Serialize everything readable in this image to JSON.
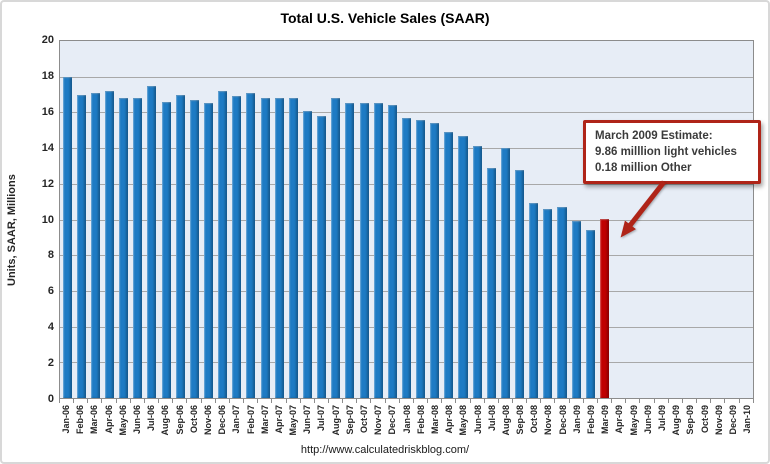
{
  "page": {
    "footer_url": "http://www.calculatedriskblog.com/"
  },
  "chart_data": {
    "type": "bar",
    "title": "Total U.S. Vehicle Sales (SAAR)",
    "ylabel": "Units, SAAR, Millions",
    "xlabel": "",
    "ylim": [
      0,
      20
    ],
    "yticks": [
      20,
      18,
      16,
      14,
      12,
      10,
      8,
      6,
      4,
      2,
      0
    ],
    "grid": true,
    "legend": "none",
    "categories": [
      "Jan-06",
      "Feb-06",
      "Mar-06",
      "Apr-06",
      "May-06",
      "Jun-06",
      "Jul-06",
      "Aug-06",
      "Sep-06",
      "Oct-06",
      "Nov-06",
      "Dec-06",
      "Jan-07",
      "Feb-07",
      "Mar-07",
      "Apr-07",
      "May-07",
      "Jun-07",
      "Jul-07",
      "Aug-07",
      "Sep-07",
      "Oct-07",
      "Nov-07",
      "Dec-07",
      "Jan-08",
      "Feb-08",
      "Mar-08",
      "Apr-08",
      "May-08",
      "Jun-08",
      "Jul-08",
      "Aug-08",
      "Sep-08",
      "Oct-08",
      "Nov-08",
      "Dec-08",
      "Jan-09",
      "Feb-09",
      "Mar-09",
      "Apr-09",
      "May-09",
      "Jun-09",
      "Jul-09",
      "Aug-09",
      "Sep-09",
      "Oct-09",
      "Nov-09",
      "Dec-09",
      "Jan-10"
    ],
    "values": [
      18.0,
      17.0,
      17.1,
      17.2,
      16.8,
      16.8,
      17.5,
      16.6,
      17.0,
      16.7,
      16.5,
      17.2,
      16.9,
      17.1,
      16.8,
      16.8,
      16.8,
      16.1,
      15.8,
      16.8,
      16.5,
      16.5,
      16.5,
      16.4,
      15.7,
      15.6,
      15.4,
      14.9,
      14.7,
      14.1,
      12.9,
      14.0,
      12.8,
      10.9,
      10.6,
      10.7,
      9.9,
      9.4,
      10.04,
      null,
      null,
      null,
      null,
      null,
      null,
      null,
      null,
      null,
      null
    ],
    "highlight_index": 38,
    "colors": {
      "bar": "#1e7bc4",
      "highlight": "#c00000",
      "plot_bg": "#e7edf6",
      "gridline": "#a8a8a8",
      "annotation_border": "#af2418",
      "arrow": "#af2418"
    },
    "annotation": {
      "lines": [
        "March 2009 Estimate:",
        "9.86 milllion light vehicles",
        "0.18 million Other"
      ]
    }
  }
}
